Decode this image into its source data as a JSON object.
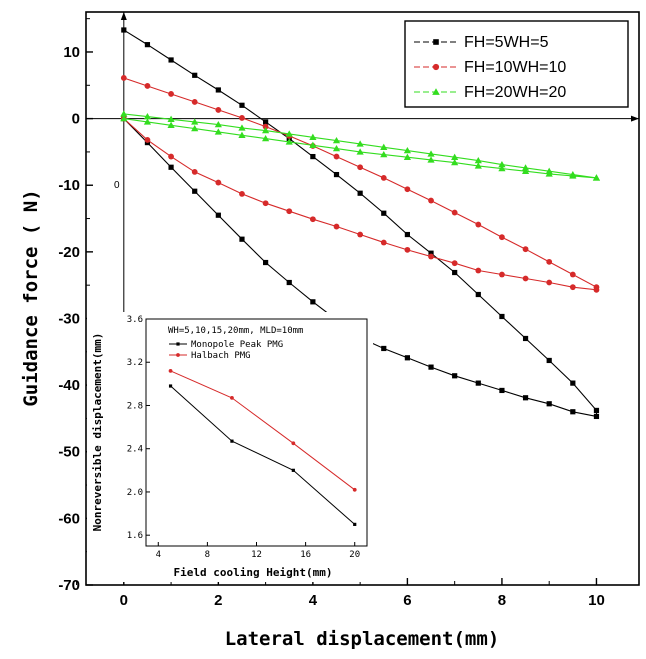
{
  "chart_data": [
    {
      "type": "line",
      "xlabel": "Lateral displacement(mm)",
      "ylabel": "Guidance force ( N)",
      "xlim": [
        -0.8,
        10.9
      ],
      "ylim": [
        -70,
        16
      ],
      "xticks": [
        "0",
        "2",
        "4",
        "6",
        "8",
        "10"
      ],
      "yticks": [
        "10",
        "0",
        "-10",
        "-20",
        "-30",
        "-40",
        "-50",
        "-60",
        "-70"
      ],
      "legend_position": "top-right",
      "annotation": "0",
      "series": [
        {
          "name": "FH=5WH=5",
          "color": "#000000",
          "marker": "square",
          "forward": [
            [
              0,
              13.3
            ],
            [
              0.5,
              11.1
            ],
            [
              1,
              8.8
            ],
            [
              1.5,
              6.5
            ],
            [
              2,
              4.3
            ],
            [
              2.5,
              2.0
            ],
            [
              3,
              -0.5
            ],
            [
              3.5,
              -3.0
            ],
            [
              4,
              -5.7
            ],
            [
              4.5,
              -8.4
            ],
            [
              5,
              -11.2
            ],
            [
              5.5,
              -14.2
            ],
            [
              6,
              -17.4
            ],
            [
              6.5,
              -20.2
            ],
            [
              7,
              -23.1
            ],
            [
              7.5,
              -26.4
            ],
            [
              8,
              -29.7
            ],
            [
              8.5,
              -33.0
            ],
            [
              9,
              -36.3
            ],
            [
              9.5,
              -39.7
            ],
            [
              10,
              -43.8
            ]
          ],
          "return": [
            [
              10,
              -44.7
            ],
            [
              9.5,
              -44.0
            ],
            [
              9,
              -42.8
            ],
            [
              8.5,
              -41.9
            ],
            [
              8,
              -40.8
            ],
            [
              7.5,
              -39.7
            ],
            [
              7,
              -38.6
            ],
            [
              6.5,
              -37.3
            ],
            [
              6,
              -35.9
            ],
            [
              5.5,
              -34.5
            ],
            [
              5,
              -32.9
            ],
            [
              4.5,
              -30.2
            ],
            [
              4,
              -27.5
            ],
            [
              3.5,
              -24.6
            ],
            [
              3,
              -21.6
            ],
            [
              2.5,
              -18.1
            ],
            [
              2,
              -14.5
            ],
            [
              1.5,
              -10.9
            ],
            [
              1,
              -7.3
            ],
            [
              0.5,
              -3.6
            ],
            [
              0,
              0.0
            ]
          ]
        },
        {
          "name": "FH=10WH=10",
          "color": "#d62a2a",
          "marker": "circle",
          "forward": [
            [
              0,
              6.1
            ],
            [
              0.5,
              4.9
            ],
            [
              1,
              3.7
            ],
            [
              1.5,
              2.5
            ],
            [
              2,
              1.3
            ],
            [
              2.5,
              0.1
            ],
            [
              3,
              -1.2
            ],
            [
              3.5,
              -2.6
            ],
            [
              4,
              -4.1
            ],
            [
              4.5,
              -5.7
            ],
            [
              5,
              -7.3
            ],
            [
              5.5,
              -8.9
            ],
            [
              6,
              -10.6
            ],
            [
              6.5,
              -12.3
            ],
            [
              7,
              -14.1
            ],
            [
              7.5,
              -15.9
            ],
            [
              8,
              -17.8
            ],
            [
              8.5,
              -19.6
            ],
            [
              9,
              -21.5
            ],
            [
              9.5,
              -23.4
            ],
            [
              10,
              -25.3
            ]
          ],
          "return": [
            [
              10,
              -25.7
            ],
            [
              9.5,
              -25.3
            ],
            [
              9,
              -24.6
            ],
            [
              8.5,
              -24.0
            ],
            [
              8,
              -23.4
            ],
            [
              7.5,
              -22.8
            ],
            [
              7,
              -21.7
            ],
            [
              6.5,
              -20.7
            ],
            [
              6,
              -19.7
            ],
            [
              5.5,
              -18.6
            ],
            [
              5,
              -17.4
            ],
            [
              4.5,
              -16.2
            ],
            [
              4,
              -15.1
            ],
            [
              3.5,
              -13.9
            ],
            [
              3,
              -12.7
            ],
            [
              2.5,
              -11.3
            ],
            [
              2,
              -9.6
            ],
            [
              1.5,
              -8.0
            ],
            [
              1,
              -5.7
            ],
            [
              0.5,
              -3.2
            ],
            [
              0,
              0.0
            ]
          ]
        },
        {
          "name": "FH=20WH=20",
          "color": "#33dd1f",
          "marker": "triangle",
          "forward": [
            [
              0,
              0.7
            ],
            [
              0.5,
              0.3
            ],
            [
              1,
              -0.1
            ],
            [
              1.5,
              -0.5
            ],
            [
              2,
              -0.9
            ],
            [
              2.5,
              -1.4
            ],
            [
              3,
              -1.8
            ],
            [
              3.5,
              -2.3
            ],
            [
              4,
              -2.8
            ],
            [
              4.5,
              -3.3
            ],
            [
              5,
              -3.8
            ],
            [
              5.5,
              -4.3
            ],
            [
              6,
              -4.8
            ],
            [
              6.5,
              -5.3
            ],
            [
              7,
              -5.8
            ],
            [
              7.5,
              -6.3
            ],
            [
              8,
              -6.9
            ],
            [
              8.5,
              -7.4
            ],
            [
              9,
              -7.9
            ],
            [
              9.5,
              -8.4
            ],
            [
              10,
              -8.9
            ]
          ],
          "return": [
            [
              10,
              -8.9
            ],
            [
              9.5,
              -8.6
            ],
            [
              9,
              -8.3
            ],
            [
              8.5,
              -7.9
            ],
            [
              8,
              -7.5
            ],
            [
              7.5,
              -7.1
            ],
            [
              7,
              -6.6
            ],
            [
              6.5,
              -6.2
            ],
            [
              6,
              -5.8
            ],
            [
              5.5,
              -5.4
            ],
            [
              5,
              -5.0
            ],
            [
              4.5,
              -4.5
            ],
            [
              4,
              -4.0
            ],
            [
              3.5,
              -3.5
            ],
            [
              3,
              -3.0
            ],
            [
              2.5,
              -2.5
            ],
            [
              2,
              -2.0
            ],
            [
              1.5,
              -1.5
            ],
            [
              1,
              -1.0
            ],
            [
              0.5,
              -0.5
            ],
            [
              0,
              0.0
            ]
          ]
        }
      ]
    },
    {
      "type": "line",
      "title": "WH=5,10,15,20mm, MLD=10mm",
      "xlabel": "Field cooling Height(mm)",
      "ylabel": "Nonreversible displacement(mm)",
      "xlim": [
        3,
        21
      ],
      "ylim": [
        1.5,
        3.6
      ],
      "xticks": [
        "4",
        "8",
        "12",
        "16",
        "20"
      ],
      "yticks": [
        "3.6",
        "3.2",
        "2.8",
        "2.4",
        "2.0",
        "1.6"
      ],
      "legend_position": "top",
      "series": [
        {
          "name": "Monopole Peak PMG",
          "color": "#000000",
          "x": [
            5,
            10,
            15,
            20
          ],
          "y": [
            2.98,
            2.47,
            2.2,
            1.7
          ]
        },
        {
          "name": "Halbach PMG",
          "color": "#d62a2a",
          "x": [
            5,
            10,
            15,
            20
          ],
          "y": [
            3.12,
            2.87,
            2.45,
            2.02
          ]
        }
      ]
    }
  ]
}
